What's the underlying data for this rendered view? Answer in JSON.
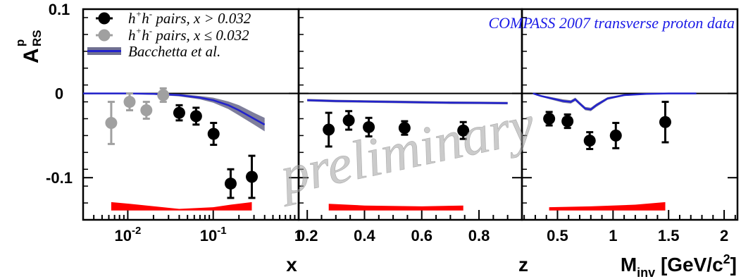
{
  "chart_data": {
    "type": "scatter",
    "ylabel": {
      "main": "A",
      "sup": "p",
      "sub": "RS"
    },
    "ylim": [
      -0.15,
      0.1
    ],
    "yticks": [
      "0.1",
      "0",
      "-0.1"
    ],
    "experiment": "COMPASS 2007 transverse proton data",
    "watermark": "preliminary",
    "legend": {
      "items": [
        {
          "name": "h+h- pairs, x > 0.032",
          "color": "#000000"
        },
        {
          "name": "h+h- pairs, x ≤ 0.032",
          "color": "#a0a0a0"
        },
        {
          "name": "Bacchetta et al.",
          "color": "#2222cc",
          "band_color": "#707090"
        }
      ],
      "placement": "top-left"
    },
    "panels": [
      {
        "xlabel": "x",
        "xscale": "log",
        "xlim": [
          0.003,
          1.0
        ],
        "xticks": [
          {
            "v": 0.01,
            "b": "10",
            "e": "-2"
          },
          {
            "v": 0.1,
            "b": "10",
            "e": "-1"
          },
          {
            "v": 1,
            "b": "1",
            "e": ""
          }
        ],
        "series": [
          {
            "name": "h+h- pairs, x ≤ 0.032",
            "color": "#a0a0a0",
            "x": [
              0.0064,
              0.0105,
              0.0165,
              0.026
            ],
            "y": [
              -0.035,
              -0.01,
              -0.02,
              -0.002
            ],
            "err": [
              0.025,
              0.01,
              0.01,
              0.008
            ]
          },
          {
            "name": "h+h- pairs, x > 0.032",
            "color": "#000000",
            "x": [
              0.04,
              0.063,
              0.101,
              0.16,
              0.283
            ],
            "y": [
              -0.023,
              -0.027,
              -0.048,
              -0.107,
              -0.099
            ],
            "err": [
              0.009,
              0.01,
              0.013,
              0.017,
              0.025
            ]
          }
        ],
        "model": {
          "x": [
            0.003,
            0.01,
            0.02,
            0.04,
            0.07,
            0.1,
            0.15,
            0.2,
            0.3,
            0.4
          ],
          "y": [
            0.0,
            0.0,
            -0.0005,
            -0.002,
            -0.005,
            -0.008,
            -0.014,
            -0.02,
            -0.03,
            -0.037
          ],
          "band": [
            0.0005,
            0.0008,
            0.001,
            0.0015,
            0.002,
            0.003,
            0.0045,
            0.006,
            0.007,
            0.008
          ]
        },
        "systematic": {
          "x": [
            0.0064,
            0.0105,
            0.04,
            0.1,
            0.16,
            0.283
          ],
          "top": [
            -0.129,
            -0.131,
            -0.137,
            -0.135,
            -0.132,
            -0.129
          ],
          "bottom": -0.139
        }
      },
      {
        "xlabel": "z",
        "xscale": "linear",
        "xlim": [
          0.17,
          0.95
        ],
        "xticks": [
          {
            "v": 0.2,
            "b": "0.2"
          },
          {
            "v": 0.4,
            "b": "0.4"
          },
          {
            "v": 0.6,
            "b": "0.6"
          },
          {
            "v": 0.8,
            "b": "0.8"
          }
        ],
        "series": [
          {
            "name": "h+h- pairs, x > 0.032",
            "color": "#000000",
            "x": [
              0.275,
              0.345,
              0.415,
              0.54,
              0.745
            ],
            "y": [
              -0.043,
              -0.032,
              -0.04,
              -0.041,
              -0.044
            ],
            "err": [
              0.02,
              0.011,
              0.011,
              0.008,
              0.01
            ]
          }
        ],
        "model": {
          "x": [
            0.2,
            0.3,
            0.4,
            0.5,
            0.6,
            0.7,
            0.8,
            0.9
          ],
          "y": [
            -0.008,
            -0.009,
            -0.0095,
            -0.01,
            -0.0105,
            -0.011,
            -0.0112,
            -0.0115
          ],
          "band": [
            0.0015,
            0.0015,
            0.0015,
            0.0015,
            0.0015,
            0.0015,
            0.0015,
            0.0015
          ]
        },
        "systematic": {
          "x": [
            0.275,
            0.4,
            0.6,
            0.745
          ],
          "top": [
            -0.131,
            -0.133,
            -0.134,
            -0.133
          ],
          "bottom": -0.139
        }
      },
      {
        "xlabel": {
          "main": "M",
          "sub": "inv",
          "rest": " [GeV/c",
          "sup": "2",
          "end": "]"
        },
        "xscale": "linear",
        "xlim": [
          0.18,
          2.12
        ],
        "xticks": [
          {
            "v": 0.5,
            "b": "0.5"
          },
          {
            "v": 1,
            "b": "1"
          },
          {
            "v": 1.5,
            "b": "1.5"
          },
          {
            "v": 2,
            "b": "2"
          }
        ],
        "series": [
          {
            "name": "h+h- pairs, x > 0.032",
            "color": "#000000",
            "x": [
              0.425,
              0.59,
              0.79,
              1.025,
              1.47
            ],
            "y": [
              -0.03,
              -0.033,
              -0.056,
              -0.05,
              -0.034
            ],
            "err": [
              0.008,
              0.008,
              0.01,
              0.015,
              0.024
            ]
          }
        ],
        "model": {
          "x": [
            0.28,
            0.35,
            0.45,
            0.55,
            0.62,
            0.66,
            0.7,
            0.75,
            0.8,
            0.85,
            0.95,
            1.1,
            1.3,
            1.5,
            1.75
          ],
          "y": [
            0.0,
            -0.003,
            -0.006,
            -0.009,
            -0.01,
            -0.007,
            -0.012,
            -0.018,
            -0.019,
            -0.014,
            -0.006,
            -0.002,
            -0.0005,
            0.0,
            0.0
          ],
          "band": [
            0.0005,
            0.001,
            0.0015,
            0.002,
            0.002,
            0.002,
            0.002,
            0.002,
            0.002,
            0.002,
            0.0015,
            0.001,
            0.0005,
            0.0003,
            0.0002
          ]
        },
        "systematic": {
          "x": [
            0.425,
            0.8,
            1.2,
            1.47
          ],
          "top": [
            -0.135,
            -0.134,
            -0.132,
            -0.129
          ],
          "bottom": -0.139
        }
      }
    ]
  }
}
